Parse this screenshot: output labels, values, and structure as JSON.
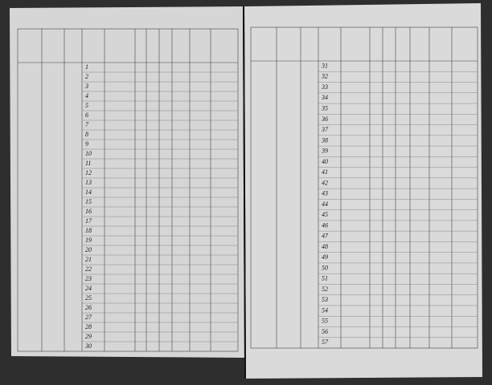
{
  "left_page": {
    "rows": [
      1,
      2,
      3,
      4,
      5,
      6,
      7,
      8,
      9,
      10,
      11,
      12,
      13,
      14,
      15,
      16,
      17,
      18,
      19,
      20,
      21,
      22,
      23,
      24,
      25,
      26,
      27,
      28,
      29,
      30
    ]
  },
  "right_page": {
    "rows": [
      31,
      32,
      33,
      34,
      35,
      36,
      37,
      38,
      39,
      40,
      41,
      42,
      43,
      44,
      45,
      46,
      47,
      48,
      49,
      50,
      51,
      52,
      53,
      54,
      55,
      56,
      57
    ]
  }
}
